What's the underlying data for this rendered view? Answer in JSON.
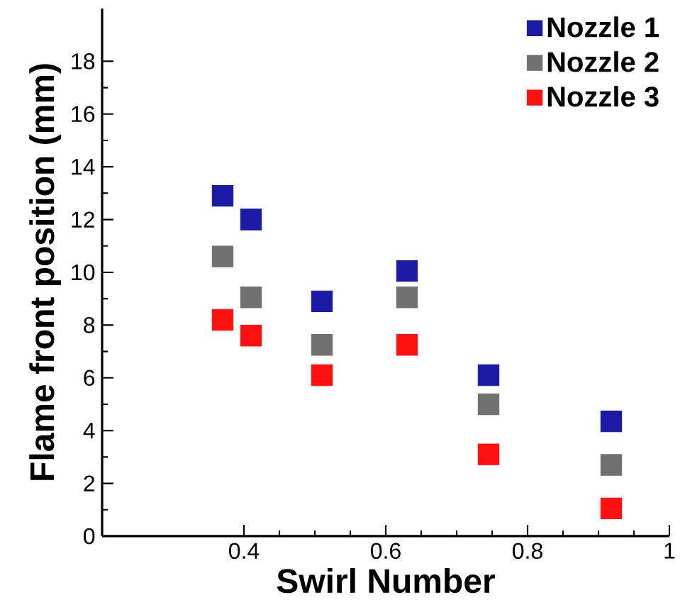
{
  "chart_data": {
    "type": "scatter",
    "xlabel": "Swirl Number",
    "ylabel": "Flame front position (mm)",
    "xlim": [
      0.2,
      1
    ],
    "ylim": [
      0,
      20
    ],
    "xticks": [
      0.4,
      0.6,
      0.8,
      1
    ],
    "yticks": [
      0,
      2,
      4,
      6,
      8,
      10,
      12,
      14,
      16,
      18
    ],
    "x": [
      0.37,
      0.41,
      0.51,
      0.63,
      0.745,
      0.918
    ],
    "series": [
      {
        "name": "Nozzle 1",
        "color": "#1a1aa6",
        "values": [
          12.9,
          12.0,
          8.9,
          10.05,
          6.1,
          4.35
        ]
      },
      {
        "name": "Nozzle 2",
        "color": "#707070",
        "values": [
          10.6,
          9.05,
          7.25,
          9.05,
          5.0,
          2.7
        ]
      },
      {
        "name": "Nozzle 3",
        "color": "#ff1010",
        "values": [
          8.2,
          7.6,
          6.1,
          7.25,
          3.1,
          1.05
        ]
      }
    ],
    "marker": "square",
    "legend": "top right",
    "grid": false
  }
}
